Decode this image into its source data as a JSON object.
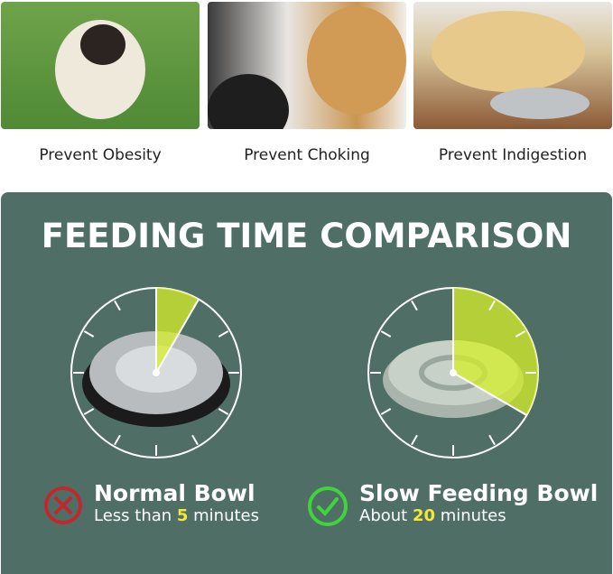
{
  "features": [
    {
      "caption": "Prevent Obesity"
    },
    {
      "caption": "Prevent Choking"
    },
    {
      "caption": "Prevent Indigestion"
    }
  ],
  "comparison": {
    "title": "FEEDING TIME COMPARISON",
    "normal": {
      "name": "Normal Bowl",
      "prefix": "Less than ",
      "value": "5",
      "suffix": " minutes",
      "minutes": 5,
      "icon": "x-circle-icon",
      "color": "#c0282d"
    },
    "slow": {
      "name": "Slow Feeding Bowl",
      "prefix": "About ",
      "value": "20",
      "suffix": " minutes",
      "minutes": 20,
      "icon": "check-circle-icon",
      "color": "#3fd43a"
    }
  },
  "colors": {
    "panel": "#4f6f66",
    "highlight": "#f5e63a",
    "wedge": "#d6ef2a"
  }
}
